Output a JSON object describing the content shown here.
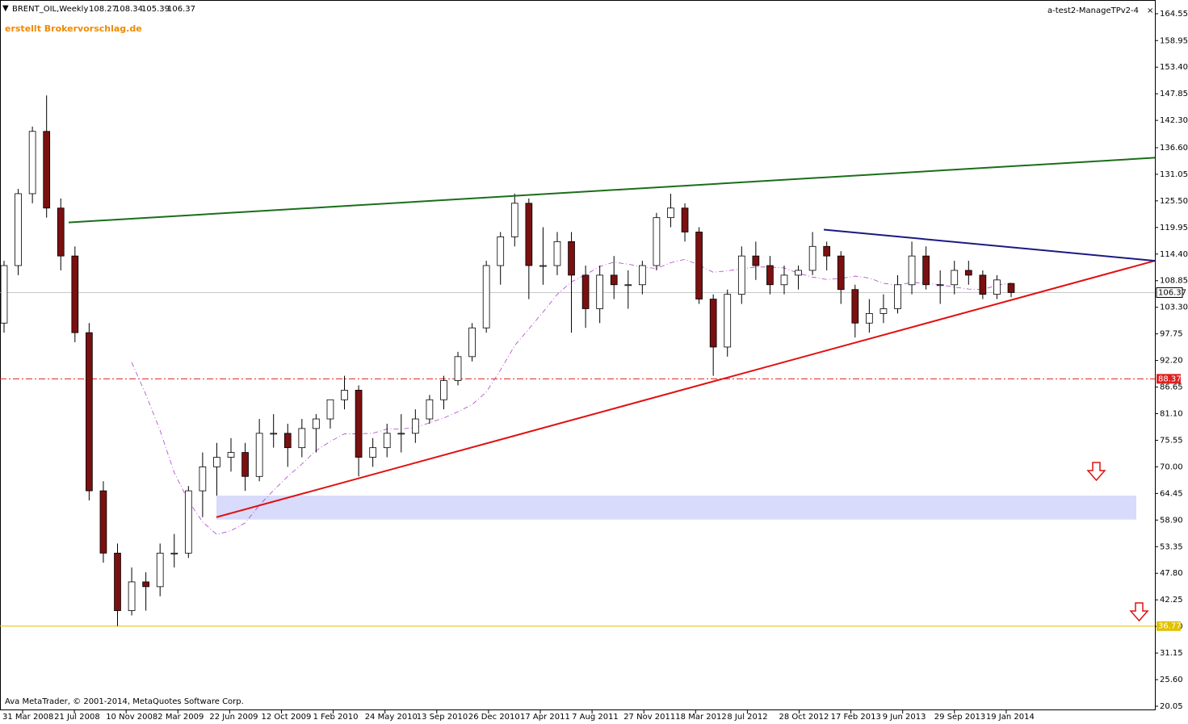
{
  "chart_data": {
    "type": "candlestick",
    "title": "BRENT_OIL,Weekly",
    "subtitle": "erstellt Brokervorschlag.de",
    "indicator": "a-test2-ManageTPv2-4",
    "footer": "Ava MetaTrader, © 2001-2014, MetaQuotes Software Corp.",
    "bull_color": "#ffffff",
    "bear_color": "#7a1010",
    "x_labels": [
      "31 Mar 2008",
      "21 Jul 2008",
      "10 Nov 2008",
      "2 Mar 2009",
      "22 Jun 2009",
      "12 Oct 2009",
      "1 Feb 2010",
      "24 May 2010",
      "13 Sep 2010",
      "26 Dec 2010",
      "17 Apr 2011",
      "7 Aug 2011",
      "27 Nov 2011",
      "18 Mar 2012",
      "8 Jul 2012",
      "28 Oct 2012",
      "17 Feb 2013",
      "9 Jun 2013",
      "29 Sep 2013",
      "19 Jan 2014"
    ],
    "ylim": [
      20.05,
      164.55
    ],
    "yticks": [
      164.55,
      158.95,
      {
        "value": 153.4,
        "label": "153.40"
      },
      147.85,
      {
        "value": 142.3,
        "label": "142.30"
      },
      {
        "value": 136.6,
        "label": "136.60"
      },
      131.05,
      {
        "value": 125.5,
        "label": "125.50"
      },
      119.95,
      {
        "value": 114.4,
        "label": "114.40"
      },
      108.85,
      {
        "value": 103.3,
        "label": "103.30"
      },
      97.75,
      {
        "value": 92.2,
        "label": "92.20"
      },
      86.65,
      {
        "value": 81.1,
        "label": "81.10"
      },
      75.55,
      {
        "value": 70,
        "label": "70.00"
      },
      64.45,
      {
        "value": 58.9,
        "label": "58.90"
      },
      53.35,
      {
        "value": 47.8,
        "label": "47.80"
      },
      42.25,
      {
        "value": 36.7,
        "label": "36.70"
      },
      31.15,
      {
        "value": 25.6,
        "label": "25.60"
      },
      20.05
    ],
    "candles": [
      [
        100,
        113,
        98,
        112
      ],
      [
        112,
        128,
        110,
        127
      ],
      [
        127,
        141,
        125,
        140
      ],
      [
        140,
        147.5,
        122,
        124
      ],
      [
        124,
        126,
        111,
        114
      ],
      [
        114,
        116,
        96,
        98
      ],
      [
        98,
        100,
        63,
        65
      ],
      [
        65,
        67,
        50,
        52
      ],
      [
        52,
        54,
        36.8,
        40
      ],
      [
        40,
        49,
        39,
        46
      ],
      [
        46,
        48,
        40,
        45
      ],
      [
        45,
        54,
        43,
        52
      ],
      [
        52,
        56,
        49,
        52
      ],
      [
        52,
        66,
        51,
        65
      ],
      [
        65,
        73,
        59.5,
        70
      ],
      [
        70,
        75,
        64,
        72
      ],
      [
        72,
        76,
        69,
        73
      ],
      [
        73,
        75,
        65,
        68
      ],
      [
        68,
        80,
        67,
        77
      ],
      [
        77,
        81,
        74,
        77
      ],
      [
        77,
        79,
        70,
        74
      ],
      [
        74,
        80,
        72,
        78
      ],
      [
        78,
        81,
        73,
        80
      ],
      [
        80,
        84,
        78,
        84
      ],
      [
        84,
        89,
        82,
        86
      ],
      [
        86,
        87,
        68,
        72
      ],
      [
        72,
        76,
        70,
        74
      ],
      [
        74,
        79,
        72,
        77
      ],
      [
        77,
        81,
        73,
        77
      ],
      [
        77,
        82,
        75,
        80
      ],
      [
        80,
        85,
        79,
        84
      ],
      [
        84,
        89,
        82,
        88
      ],
      [
        88,
        94,
        87,
        93
      ],
      [
        93,
        100,
        92,
        99
      ],
      [
        99,
        113,
        98,
        112
      ],
      [
        112,
        119,
        108,
        118
      ],
      [
        118,
        127,
        116,
        125
      ],
      [
        125,
        126,
        105,
        112
      ],
      [
        112,
        120,
        108,
        112
      ],
      [
        112,
        119,
        110,
        117
      ],
      [
        117,
        119,
        98,
        110
      ],
      [
        110,
        112,
        99,
        103
      ],
      [
        103,
        112,
        100,
        110
      ],
      [
        110,
        114,
        105,
        108
      ],
      [
        108,
        111,
        103,
        108
      ],
      [
        108,
        113,
        106,
        112
      ],
      [
        112,
        123,
        111,
        122
      ],
      [
        122,
        127,
        120,
        124
      ],
      [
        124,
        125,
        117,
        119
      ],
      [
        119,
        120,
        104,
        105
      ],
      [
        105,
        106,
        89,
        95
      ],
      [
        95,
        107,
        93,
        106
      ],
      [
        106,
        116,
        104,
        114
      ],
      [
        114,
        117,
        109,
        112
      ],
      [
        112,
        114,
        106,
        108
      ],
      [
        108,
        112,
        106,
        110
      ],
      [
        110,
        112,
        107,
        111
      ],
      [
        111,
        119,
        110,
        116
      ],
      [
        116,
        117,
        111,
        114
      ],
      [
        114,
        115,
        104,
        107
      ],
      [
        107,
        108,
        97,
        100
      ],
      [
        100,
        105,
        98,
        102
      ],
      [
        102,
        106,
        100,
        103
      ],
      [
        103,
        110,
        102,
        108
      ],
      [
        108,
        117,
        106,
        114
      ],
      [
        114,
        116,
        107,
        108
      ],
      [
        108,
        111,
        104,
        108
      ],
      [
        108,
        113,
        106,
        111
      ],
      [
        111,
        113,
        108,
        110
      ],
      [
        110,
        111,
        105,
        106
      ],
      [
        106,
        110,
        105,
        109
      ],
      [
        108.27,
        108.34,
        105.39,
        106.37
      ]
    ],
    "levels": [
      {
        "value": 88.37,
        "color": "#e02020"
      },
      {
        "value": 36.77,
        "color": "#e0c000"
      }
    ],
    "band": {
      "from": 59,
      "to": 64,
      "color": "#d9dbfb"
    },
    "trendlines": [
      {
        "color": "#1a6e1a",
        "values": [
          121,
          134.5
        ]
      },
      {
        "color": "#e01010",
        "values": [
          59.5,
          113
        ]
      },
      {
        "color": "#1a1a80",
        "values": [
          119.5,
          113
        ]
      }
    ]
  }
}
